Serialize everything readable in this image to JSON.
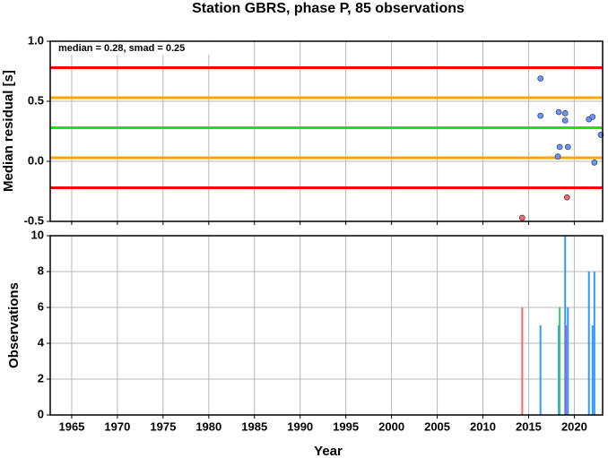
{
  "chart_data": [
    {
      "type": "scatter",
      "title": "Station GBRS, phase P, 85 observations",
      "ylabel": "Median residual [s]",
      "annotation": "median = 0.28, smad = 0.25",
      "x": [
        2016.3,
        2016.3,
        2018.3,
        2018.4,
        2018.2,
        2019.0,
        2019.0,
        2019.3,
        2019.2,
        2014.3,
        2021.6,
        2022.0,
        2022.2,
        2022.9
      ],
      "values": [
        0.69,
        0.38,
        0.41,
        0.12,
        0.04,
        0.4,
        0.34,
        0.12,
        -0.3,
        -0.47,
        0.35,
        0.37,
        -0.01,
        0.22
      ],
      "colors": [
        "#6699ff",
        "#6699ff",
        "#6699ff",
        "#6699ff",
        "#6699ff",
        "#6699ff",
        "#6699ff",
        "#6699ff",
        "#ff6666",
        "#ff6666",
        "#6699ff",
        "#6699ff",
        "#6699ff",
        "#6699ff"
      ],
      "reference_lines": [
        {
          "value": 0.78,
          "color": "#ff0000"
        },
        {
          "value": 0.53,
          "color": "#ffa500"
        },
        {
          "value": 0.28,
          "color": "#00ee00"
        },
        {
          "value": 0.03,
          "color": "#ffa500"
        },
        {
          "value": -0.22,
          "color": "#ff0000"
        }
      ],
      "xlim": [
        1962.65,
        2023.1
      ],
      "xticks": [
        1965,
        1970,
        1975,
        1980,
        1985,
        1990,
        1995,
        2000,
        2005,
        2010,
        2015,
        2020
      ],
      "ylim": [
        -0.5,
        1.0
      ],
      "yticks": [
        -0.5,
        {
          "value": 0,
          "label": "0.0"
        },
        0.5,
        {
          "value": 1,
          "label": "1.0"
        }
      ],
      "grid": true
    },
    {
      "type": "bar",
      "xlabel": "Year",
      "ylabel": "Observations",
      "x": [
        2014.3,
        2016.3,
        2018.3,
        2018.4,
        2019.0,
        2019.1,
        2019.3,
        2021.6,
        2022.0,
        2022.2
      ],
      "values": [
        6,
        5,
        5,
        6,
        10,
        5,
        6,
        8,
        5,
        8
      ],
      "colors": [
        "#ff6666",
        "#3399ff",
        "#3399ff",
        "#33cc66",
        "#3399ff",
        "#9966cc",
        "#3399ff",
        "#3399ff",
        "#3399ff",
        "#3399ff"
      ],
      "xlim": [
        1962.65,
        2023.1
      ],
      "xticks": [
        1965,
        1970,
        1975,
        1980,
        1985,
        1990,
        1995,
        2000,
        2005,
        2010,
        2015,
        2020
      ],
      "ylim": [
        0,
        10
      ],
      "yticks": [
        0,
        2,
        4,
        6,
        8,
        10
      ],
      "grid": true
    }
  ]
}
